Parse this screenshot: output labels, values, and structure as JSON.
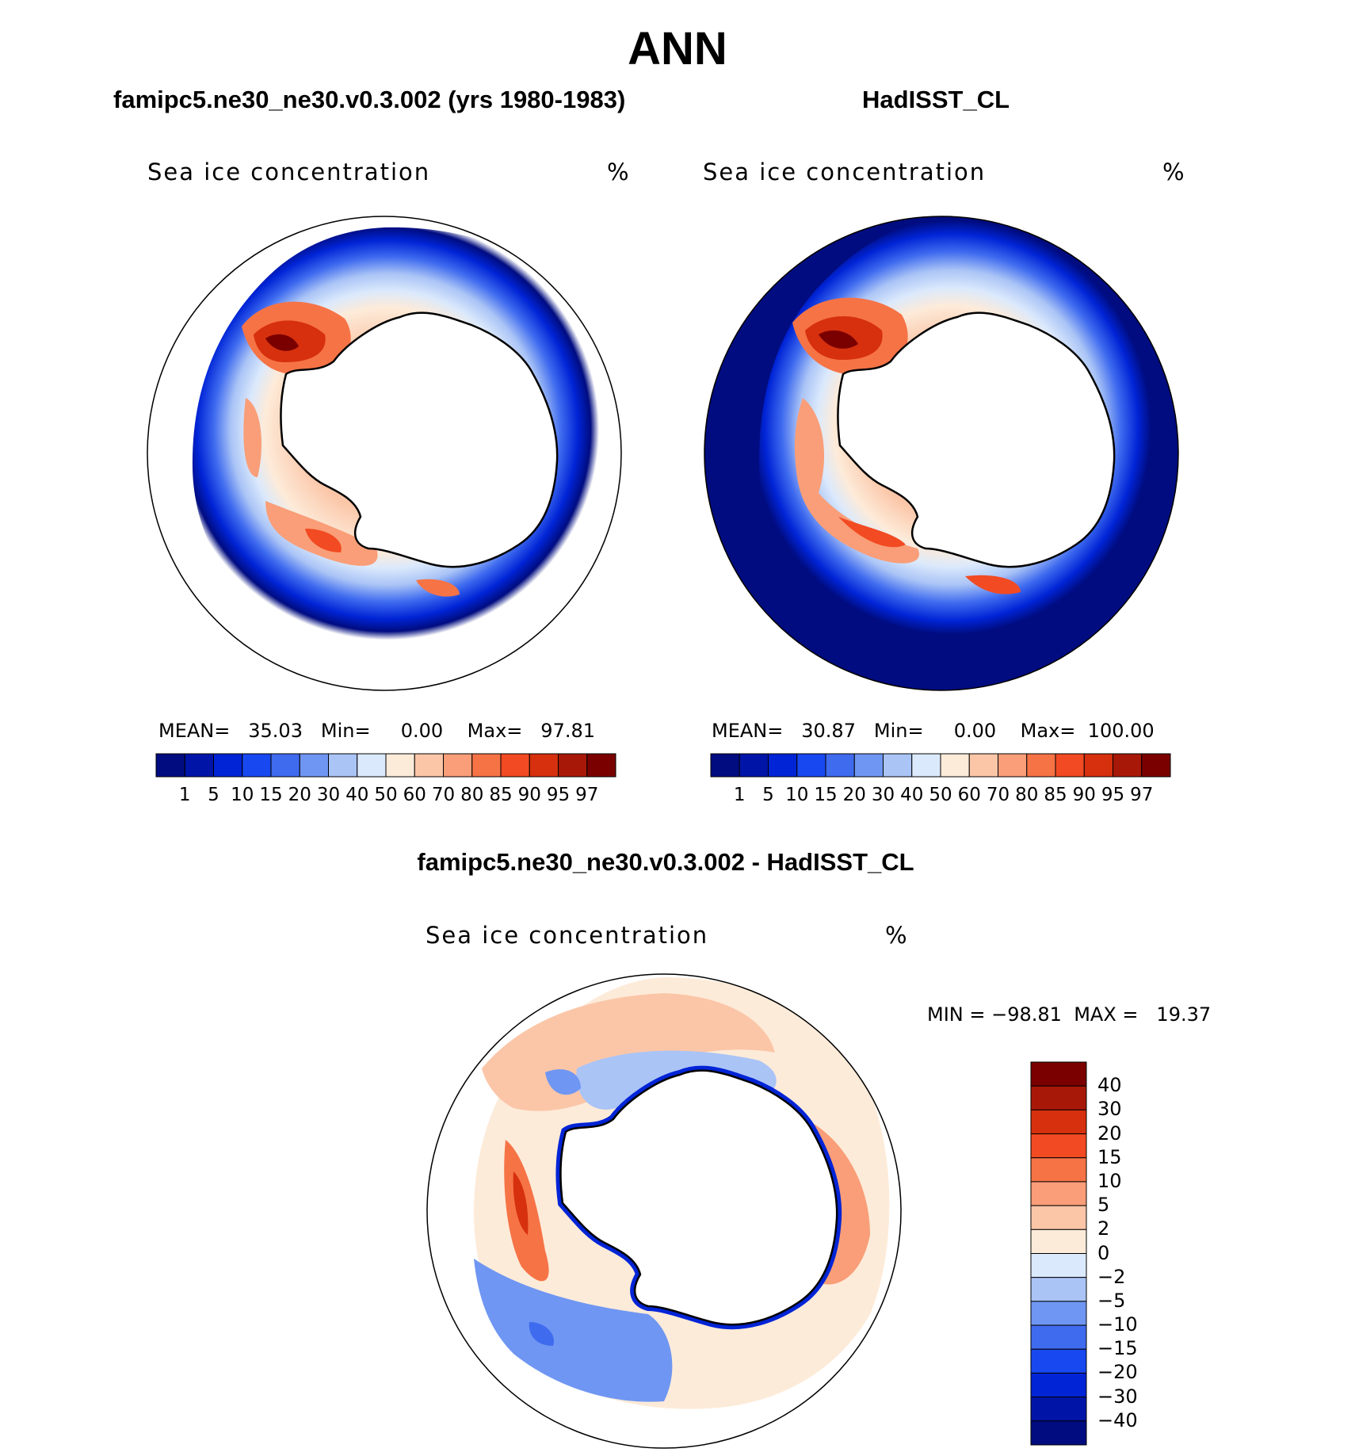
{
  "title": "ANN",
  "panels": {
    "model": {
      "title": "famipc5.ne30_ne30.v0.3.002 (yrs 1980-1983)",
      "variable": "Sea ice concentration",
      "unit": "%",
      "stats": {
        "mean_label": "MEAN=",
        "mean": "35.03",
        "min_label": "Min=",
        "min": "0.00",
        "max_label": "Max=",
        "max": "97.81"
      }
    },
    "obs": {
      "title": "HadISST_CL",
      "variable": "Sea ice concentration",
      "unit": "%",
      "stats": {
        "mean_label": "MEAN=",
        "mean": "30.87",
        "min_label": "Min=",
        "min": "0.00",
        "max_label": "Max=",
        "max": "100.00"
      }
    },
    "diff": {
      "title": "famipc5.ne30_ne30.v0.3.002 - HadISST_CL",
      "variable": "Sea ice concentration",
      "unit": "%",
      "stats": {
        "min_label": "MIN =",
        "min": "−98.81",
        "max_label": "MAX =",
        "max": "19.37"
      }
    }
  },
  "chart_data": [
    {
      "type": "heatmap",
      "projection": "south-polar-stereographic",
      "title": "famipc5.ne30_ne30.v0.3.002 (yrs 1980-1983)",
      "variable": "Sea ice concentration",
      "unit": "%",
      "mean": 35.03,
      "min": 0.0,
      "max": 97.81,
      "colorbar_levels": [
        1,
        5,
        10,
        15,
        20,
        30,
        40,
        50,
        60,
        70,
        80,
        85,
        90,
        95,
        97
      ]
    },
    {
      "type": "heatmap",
      "projection": "south-polar-stereographic",
      "title": "HadISST_CL",
      "variable": "Sea ice concentration",
      "unit": "%",
      "mean": 30.87,
      "min": 0.0,
      "max": 100.0,
      "colorbar_levels": [
        1,
        5,
        10,
        15,
        20,
        30,
        40,
        50,
        60,
        70,
        80,
        85,
        90,
        95,
        97
      ]
    },
    {
      "type": "heatmap",
      "projection": "south-polar-stereographic",
      "title": "famipc5.ne30_ne30.v0.3.002 - HadISST_CL",
      "variable": "Sea ice concentration",
      "unit": "%",
      "min": -98.81,
      "max": 19.37,
      "colorbar_levels": [
        40,
        30,
        20,
        15,
        10,
        5,
        2,
        0,
        -2,
        -5,
        -10,
        -15,
        -20,
        -30,
        -40
      ]
    }
  ],
  "colorbars": {
    "abs_labels": [
      "1",
      "5",
      "10",
      "15",
      "20",
      "30",
      "40",
      "50",
      "60",
      "70",
      "80",
      "85",
      "90",
      "95",
      "97"
    ],
    "abs_colors": [
      "#000c80",
      "#0015a8",
      "#0024d6",
      "#1848f0",
      "#3f6bef",
      "#6f96f2",
      "#aac4f6",
      "#dbe9fc",
      "#fdebd9",
      "#fbc6a8",
      "#f99e78",
      "#f67346",
      "#f24a22",
      "#d6300e",
      "#a81808",
      "#7a0000"
    ],
    "diff_labels": [
      "40",
      "30",
      "20",
      "15",
      "10",
      "5",
      "2",
      "0",
      "−2",
      "−5",
      "−10",
      "−15",
      "−20",
      "−30",
      "−40"
    ],
    "diff_colors": [
      "#7a0000",
      "#a81808",
      "#d6300e",
      "#f24a22",
      "#f67346",
      "#f99e78",
      "#fbc6a8",
      "#fdebd9",
      "#dbe9fc",
      "#aac4f6",
      "#6f96f2",
      "#3f6bef",
      "#1848f0",
      "#0024d6",
      "#0015a8",
      "#000c80"
    ]
  }
}
